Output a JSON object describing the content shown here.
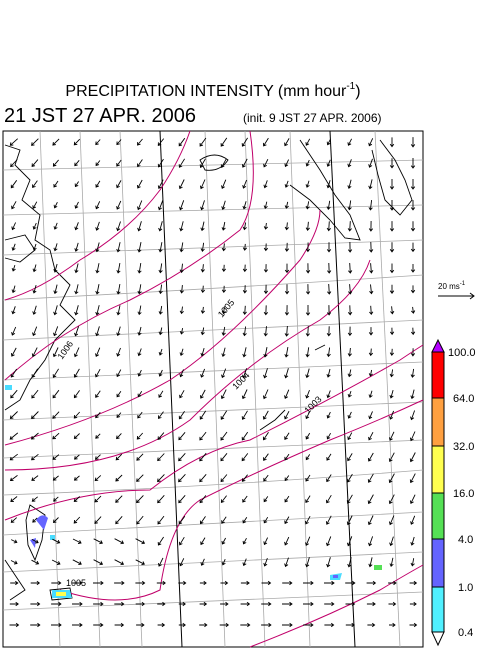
{
  "header": {
    "title_main": "PRECIPITATION INTENSITY (mm hour",
    "title_sup": "-1",
    "title_end": ")",
    "valid_time": "21 JST 27 APR. 2006",
    "init_time": "(init. 9 JST 27 APR. 2006)"
  },
  "wind_scale": {
    "text": "20 ms",
    "sup": "-1"
  },
  "colorbar": {
    "labels": [
      "100.0",
      "64.0",
      "32.0",
      "16.0",
      "4.0",
      "1.0",
      "0.4"
    ]
  },
  "isobar_labels": [
    "1006",
    "1005",
    "1004",
    "1003",
    "1005"
  ]
}
